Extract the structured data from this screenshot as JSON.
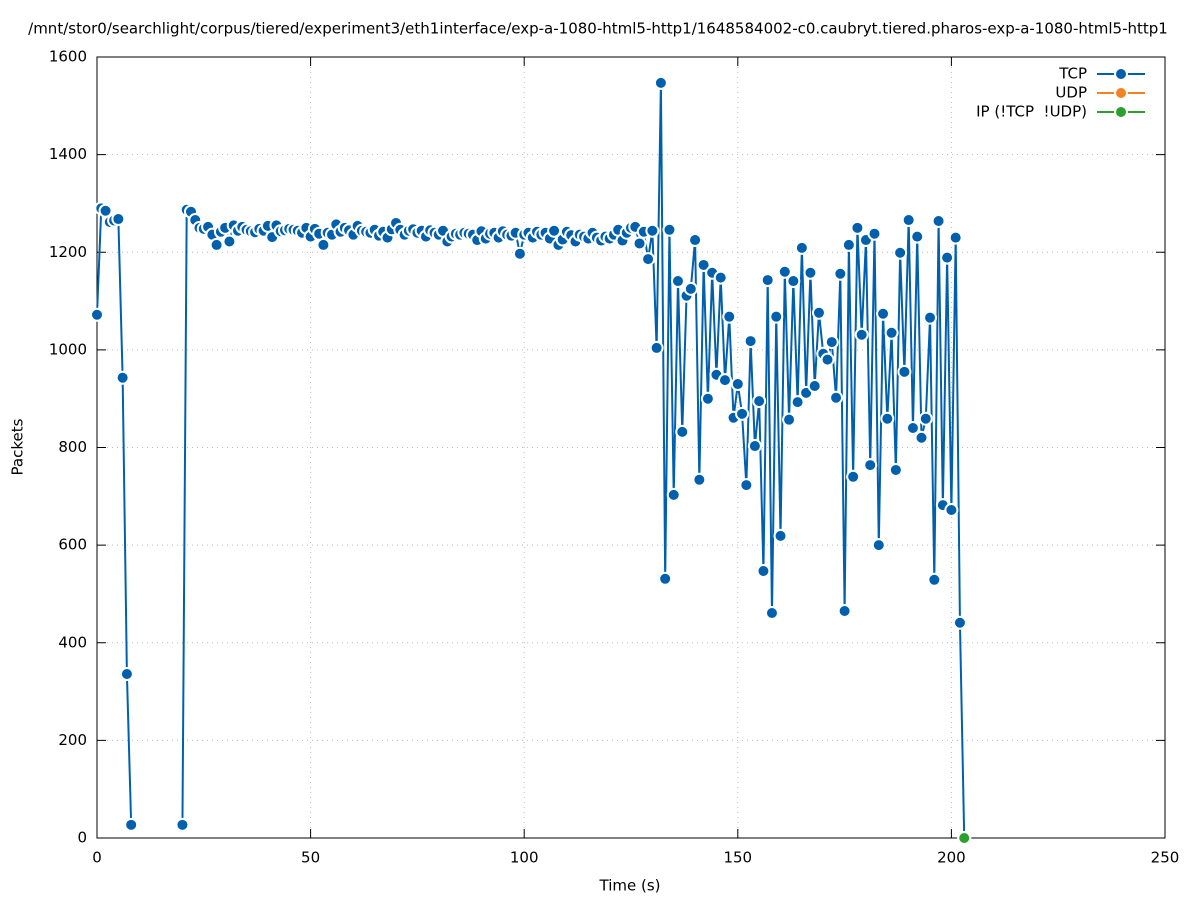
{
  "chart_data": {
    "type": "line",
    "title": "/mnt/stor0/searchlight/corpus/tiered/experiment3/eth1interface/exp-a-1080-html5-http1/1648584002-c0.caubryt.tiered.pharos-exp-a-1080-html5-http1",
    "xlabel": "Time (s)",
    "ylabel": "Packets",
    "xlim": [
      0,
      250
    ],
    "xticks": [
      0,
      50,
      100,
      150,
      200,
      250
    ],
    "ylim": [
      0,
      1600
    ],
    "yticks": [
      0,
      200,
      400,
      600,
      800,
      1000,
      1200,
      1400,
      1600
    ],
    "grid": true,
    "legend": "upper right",
    "series": [
      {
        "name": "TCP",
        "color": "#0060ad",
        "x": [
          0,
          1,
          2,
          3,
          4,
          5,
          6,
          7,
          8,
          9,
          10,
          11,
          12,
          13,
          14,
          15,
          16,
          17,
          18,
          19,
          20,
          21,
          22,
          23,
          24,
          25,
          26,
          27,
          28,
          29,
          30,
          31,
          32,
          33,
          34,
          35,
          36,
          37,
          38,
          39,
          40,
          41,
          42,
          43,
          44,
          45,
          46,
          47,
          48,
          49,
          50,
          51,
          52,
          53,
          54,
          55,
          56,
          57,
          58,
          59,
          60,
          61,
          62,
          63,
          64,
          65,
          66,
          67,
          68,
          69,
          70,
          71,
          72,
          73,
          74,
          75,
          76,
          77,
          78,
          79,
          80,
          81,
          82,
          83,
          84,
          85,
          86,
          87,
          88,
          89,
          90,
          91,
          92,
          93,
          94,
          95,
          96,
          97,
          98,
          99,
          100,
          101,
          102,
          103,
          104,
          105,
          106,
          107,
          108,
          109,
          110,
          111,
          112,
          113,
          114,
          115,
          116,
          117,
          118,
          119,
          120,
          121,
          122,
          123,
          124,
          125,
          126,
          127,
          128,
          129,
          130,
          131,
          132,
          133,
          134,
          135,
          136,
          137,
          138,
          139,
          140,
          141,
          142,
          143,
          144,
          145,
          146,
          147,
          148,
          149,
          150,
          151,
          152,
          153,
          154,
          155,
          156,
          157,
          158,
          159,
          160,
          161,
          162,
          163,
          164,
          165,
          166,
          167,
          168,
          169,
          170,
          171,
          172,
          173,
          174,
          175,
          176,
          177,
          178,
          179,
          180,
          181,
          182,
          183,
          184,
          185,
          186,
          187,
          188,
          189,
          190,
          191,
          192,
          193,
          194,
          195,
          196,
          197,
          198,
          199,
          200,
          201,
          202,
          203
        ],
        "values": [
          1072,
          1290,
          1285,
          1262,
          1265,
          1268,
          943,
          336,
          27,
          null,
          null,
          null,
          null,
          null,
          null,
          null,
          null,
          null,
          null,
          null,
          27,
          1287,
          1283,
          1266,
          1250,
          1248,
          1252,
          1236,
          1215,
          1242,
          1250,
          1222,
          1255,
          1244,
          1252,
          1246,
          1243,
          1241,
          1248,
          1244,
          1254,
          1231,
          1255,
          1243,
          1245,
          1248,
          1246,
          1244,
          1240,
          1250,
          1232,
          1248,
          1238,
          1215,
          1240,
          1236,
          1257,
          1242,
          1250,
          1245,
          1236,
          1254,
          1244,
          1242,
          1240,
          1246,
          1234,
          1242,
          1230,
          1247,
          1260,
          1246,
          1236,
          1244,
          1247,
          1240,
          1244,
          1232,
          1245,
          1240,
          1236,
          1244,
          1222,
          1232,
          1238,
          1236,
          1240,
          1238,
          1236,
          1225,
          1243,
          1228,
          1238,
          1240,
          1230,
          1243,
          1236,
          1234,
          1240,
          1197,
          1236,
          1240,
          1230,
          1242,
          1236,
          1240,
          1228,
          1244,
          1215,
          1226,
          1242,
          1235,
          1222,
          1236,
          1232,
          1228,
          1240,
          1230,
          1224,
          1232,
          1228,
          1236,
          1246,
          1224,
          1240,
          1250,
          1252,
          1218,
          1242,
          1186,
          1244,
          1004,
          1547,
          531,
          1246,
          703,
          1141,
          832,
          1111,
          1125,
          1225,
          734,
          1174,
          900,
          1158,
          949,
          1148,
          938,
          1068,
          861,
          930,
          869,
          723,
          1018,
          803,
          895,
          547,
          1143,
          461,
          1068,
          619,
          1160,
          857,
          1141,
          893,
          1209,
          912,
          1158,
          926,
          1076,
          992,
          980,
          1016,
          902,
          1156,
          465,
          1215,
          740,
          1250,
          1031,
          1225,
          764,
          1238,
          600,
          1074,
          859,
          1035,
          754,
          1199,
          955,
          1266,
          840,
          1232,
          820,
          859,
          1066,
          529,
          1264,
          682,
          1189,
          672,
          1230,
          441,
          0
        ]
      },
      {
        "name": "UDP",
        "color": "#f58220",
        "x": [],
        "values": []
      },
      {
        "name": "IP (!TCP  !UDP)",
        "color": "#2ca02c",
        "x": [
          203
        ],
        "values": [
          0
        ]
      }
    ]
  }
}
